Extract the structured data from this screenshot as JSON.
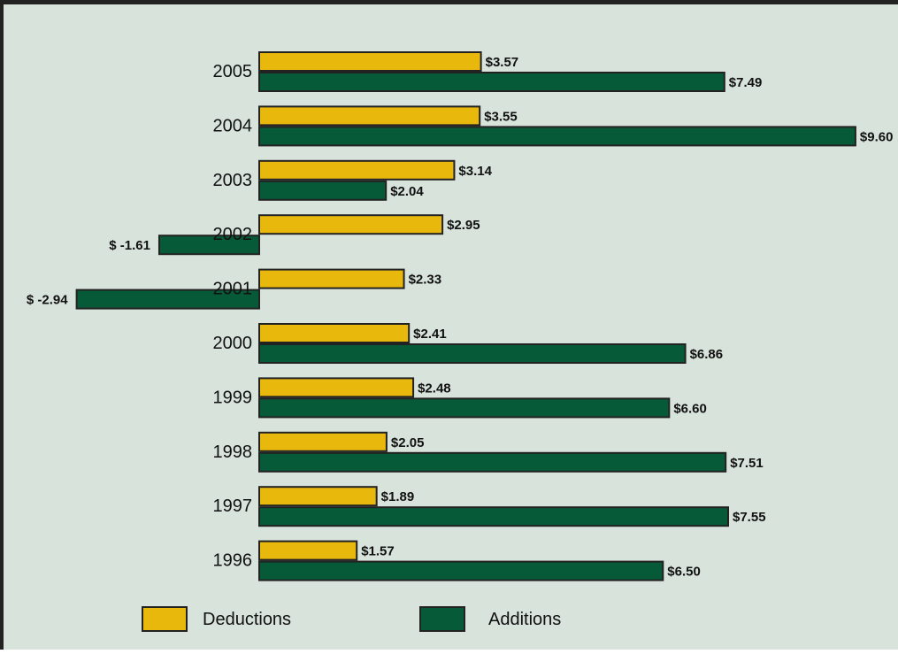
{
  "chart_data": {
    "type": "bar",
    "orientation": "horizontal",
    "categories": [
      "2005",
      "2004",
      "2003",
      "2002",
      "2001",
      "2000",
      "1999",
      "1998",
      "1997",
      "1996"
    ],
    "series": [
      {
        "name": "Deductions",
        "color": "#e8b80c",
        "values": [
          3.57,
          3.55,
          3.14,
          2.95,
          2.33,
          2.41,
          2.48,
          2.05,
          1.89,
          1.57
        ],
        "labels": [
          "$3.57",
          "$3.55",
          "$3.14",
          "$2.95",
          "$2.33",
          "$2.41",
          "$2.48",
          "$2.05",
          "$1.89",
          "$1.57"
        ]
      },
      {
        "name": "Additions",
        "color": "#075a38",
        "values": [
          7.49,
          9.6,
          2.04,
          -1.61,
          -2.94,
          6.86,
          6.6,
          7.51,
          7.55,
          6.5
        ],
        "labels": [
          "$7.49",
          "$9.60",
          "$2.04",
          "$ -1.61",
          "$ -2.94",
          "$6.86",
          "$6.60",
          "$7.51",
          "$7.55",
          "$6.50"
        ]
      }
    ],
    "background_color": "#d8e3dc",
    "legend_position": "bottom",
    "grid": false
  }
}
